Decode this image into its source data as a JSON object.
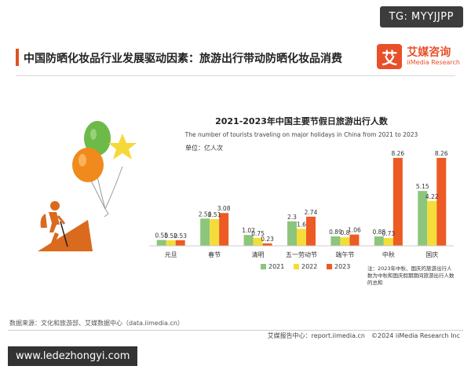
{
  "watermark": "TG: MYYJJPP",
  "header": {
    "title": "中国防晒化妆品行业发展驱动因素：旅游出行带动防晒化妆品消费"
  },
  "logo": {
    "mark": "艾",
    "cn": "艾媒咨询",
    "en": "iiMedia Research"
  },
  "colors": {
    "2021": "#8dc57c",
    "2022": "#f4dd3a",
    "2023": "#ec5b23"
  },
  "chart_data": {
    "type": "bar",
    "title": "2021-2023年中国主要节假日旅游出行人数",
    "subtitle": "The number of tourists traveling on major holidays in China from 2021 to 2023",
    "unit": "单位：亿人次",
    "categories": [
      "元旦",
      "春节",
      "清明",
      "五一劳动节",
      "端午节",
      "中秋",
      "国庆"
    ],
    "series": [
      {
        "name": "2021",
        "values": [
          0.55,
          2.56,
          1.02,
          2.3,
          0.89,
          0.88,
          5.15
        ]
      },
      {
        "name": "2022",
        "values": [
          0.52,
          2.51,
          0.75,
          1.6,
          0.8,
          0.73,
          4.22
        ]
      },
      {
        "name": "2023",
        "values": [
          0.53,
          3.08,
          0.23,
          2.74,
          1.06,
          8.26,
          8.26
        ]
      }
    ],
    "ylim": [
      0,
      8.26
    ],
    "legend_position": "bottom",
    "note": "注：2023年中秋、国庆的旅游出行人数为中秋和国庆假期期间旅游出行人数的总和"
  },
  "footer": {
    "source": "数据来源：文化和旅游部、艾媒数据中心（data.iimedia.cn）",
    "report_center": "艾媒报告中心：report.iimedia.cn",
    "copyright": "©2024  iiMedia Research  Inc"
  },
  "site": "www.ledezhongyi.com"
}
